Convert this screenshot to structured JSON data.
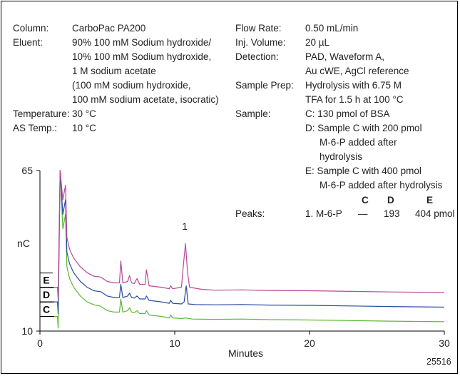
{
  "conditions": {
    "column_label": "Column:",
    "column_value": "CarboPac PA200",
    "eluent_label": "Eluent:",
    "eluent_lines": [
      "90% 100 mM Sodium hydroxide/",
      "10% 100 mM Sodium hydroxide,",
      "1 M sodium acetate",
      "(100 mM sodium hydroxide,",
      "100 mM sodium acetate, isocratic)"
    ],
    "temperature_label": "Temperature:",
    "temperature_value": "30 °C",
    "as_temp_label": "AS Temp.:",
    "as_temp_value": "10 °C",
    "flow_label": "Flow Rate:",
    "flow_value": "0.50 mL/min",
    "inj_label": "Inj. Volume:",
    "inj_value": "20 µL",
    "detection_label": "Detection:",
    "detection_lines": [
      "PAD, Waveform A,",
      "Au cWE, AgCl reference"
    ],
    "prep_label": "Sample Prep:",
    "prep_lines": [
      "Hydrolysis with 6.75 M",
      "TFA for 1.5 h at 100 °C"
    ],
    "sample_label": "Sample:",
    "sample_lines": [
      "C:  130 pmol of BSA",
      "D:  Sample C with 200 pmol",
      "M-6-P added after",
      "hydrolysis",
      "E:  Sample C with 400 pmol",
      "M-6-P added after hydrolysis"
    ]
  },
  "peaks_table": {
    "label": "Peaks:",
    "header": [
      "C",
      "D",
      "E"
    ],
    "peak_name": "1. M-6-P",
    "values": [
      "—",
      "193",
      "404 pmol"
    ]
  },
  "figure_id": "25516",
  "chart_data": {
    "type": "line",
    "xlabel": "Minutes",
    "ylabel": "nC",
    "xlim": [
      0,
      30
    ],
    "ylim": [
      10,
      65
    ],
    "x_ticks": [
      "0",
      "10",
      "20",
      "30"
    ],
    "y_ticks": [
      "10",
      "65"
    ],
    "peak_annotation": {
      "label": "1",
      "x": 10.8
    },
    "series": [
      {
        "name": "C",
        "color": "#5cb832",
        "points": [
          [
            0,
            15
          ],
          [
            1.3,
            15
          ],
          [
            1.35,
            11
          ],
          [
            1.5,
            65
          ],
          [
            1.7,
            45
          ],
          [
            1.9,
            50
          ],
          [
            2.0,
            32
          ],
          [
            2.2,
            28
          ],
          [
            2.5,
            25
          ],
          [
            3,
            22
          ],
          [
            3.5,
            20
          ],
          [
            4,
            19
          ],
          [
            4.5,
            18.5
          ],
          [
            5,
            17
          ],
          [
            5.5,
            16.5
          ],
          [
            5.9,
            16.5
          ],
          [
            6.0,
            21
          ],
          [
            6.15,
            16.5
          ],
          [
            6.5,
            17
          ],
          [
            6.65,
            18
          ],
          [
            6.8,
            16.5
          ],
          [
            7.0,
            16.3
          ],
          [
            7.2,
            17
          ],
          [
            7.4,
            16
          ],
          [
            7.8,
            16
          ],
          [
            7.9,
            17
          ],
          [
            8.1,
            15.5
          ],
          [
            9,
            15
          ],
          [
            9.6,
            14.5
          ],
          [
            9.7,
            15.5
          ],
          [
            9.85,
            14.5
          ],
          [
            10.5,
            14.3
          ],
          [
            10.8,
            14.5
          ],
          [
            11.3,
            14.1
          ],
          [
            13,
            14
          ],
          [
            15,
            14.1
          ],
          [
            17,
            13.9
          ],
          [
            20,
            13.8
          ],
          [
            23,
            13.6
          ],
          [
            26,
            13.4
          ],
          [
            30,
            13.2
          ]
        ]
      },
      {
        "name": "D",
        "color": "#2b4aa3",
        "points": [
          [
            0,
            20
          ],
          [
            1.3,
            20
          ],
          [
            1.35,
            16
          ],
          [
            1.5,
            65
          ],
          [
            1.7,
            50
          ],
          [
            1.9,
            55
          ],
          [
            2.0,
            37
          ],
          [
            2.2,
            33
          ],
          [
            2.5,
            30
          ],
          [
            3,
            27
          ],
          [
            3.5,
            25
          ],
          [
            4,
            23.8
          ],
          [
            4.5,
            23.5
          ],
          [
            5,
            22
          ],
          [
            5.5,
            21.5
          ],
          [
            5.9,
            21.5
          ],
          [
            6.0,
            26
          ],
          [
            6.15,
            21.5
          ],
          [
            6.5,
            22
          ],
          [
            6.65,
            23
          ],
          [
            6.8,
            21.5
          ],
          [
            7.0,
            21.3
          ],
          [
            7.2,
            22
          ],
          [
            7.4,
            21
          ],
          [
            7.8,
            21
          ],
          [
            7.9,
            22
          ],
          [
            8.1,
            20.5
          ],
          [
            9,
            20
          ],
          [
            9.6,
            19.5
          ],
          [
            9.7,
            20.5
          ],
          [
            9.85,
            19.5
          ],
          [
            10.5,
            19.3
          ],
          [
            10.7,
            20
          ],
          [
            10.85,
            25.5
          ],
          [
            11.0,
            19.3
          ],
          [
            11.5,
            19.1
          ],
          [
            13,
            19
          ],
          [
            15,
            19.1
          ],
          [
            17,
            18.9
          ],
          [
            20,
            18.8
          ],
          [
            23,
            18.6
          ],
          [
            26,
            18.4
          ],
          [
            30,
            18.2
          ]
        ]
      },
      {
        "name": "E",
        "color": "#b8489a",
        "points": [
          [
            0,
            25
          ],
          [
            1.3,
            25
          ],
          [
            1.35,
            21
          ],
          [
            1.5,
            65
          ],
          [
            1.7,
            55
          ],
          [
            1.9,
            60
          ],
          [
            2.0,
            42
          ],
          [
            2.2,
            38
          ],
          [
            2.5,
            35
          ],
          [
            3,
            32
          ],
          [
            3.5,
            30
          ],
          [
            4,
            28.8
          ],
          [
            4.5,
            28.5
          ],
          [
            5,
            27
          ],
          [
            5.5,
            26.5
          ],
          [
            5.9,
            26.5
          ],
          [
            6.0,
            34
          ],
          [
            6.15,
            26.5
          ],
          [
            6.5,
            27
          ],
          [
            6.65,
            29
          ],
          [
            6.8,
            26.5
          ],
          [
            7.0,
            26.3
          ],
          [
            7.2,
            28
          ],
          [
            7.4,
            26
          ],
          [
            7.8,
            26
          ],
          [
            7.9,
            31
          ],
          [
            8.1,
            25.5
          ],
          [
            9,
            25
          ],
          [
            9.6,
            24.5
          ],
          [
            9.7,
            25.5
          ],
          [
            9.85,
            24.5
          ],
          [
            10.5,
            25
          ],
          [
            10.65,
            33
          ],
          [
            10.8,
            40
          ],
          [
            10.95,
            30
          ],
          [
            11.1,
            25
          ],
          [
            12,
            24.3
          ],
          [
            13,
            24
          ],
          [
            15,
            24.1
          ],
          [
            17,
            23.9
          ],
          [
            20,
            23.8
          ],
          [
            23,
            23.6
          ],
          [
            26,
            23.4
          ],
          [
            30,
            23.2
          ]
        ]
      }
    ]
  }
}
